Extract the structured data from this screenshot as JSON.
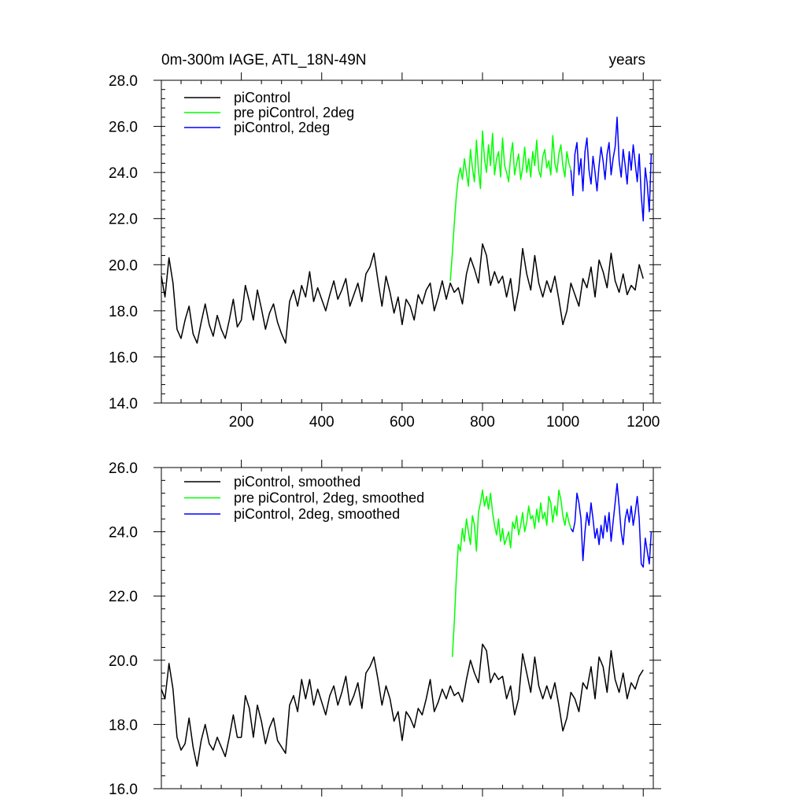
{
  "chart_data": [
    {
      "type": "line",
      "title": "0m-300m IAGE, ATL_18N-49N",
      "title_right": "years",
      "xlim": [
        1,
        1225
      ],
      "ylim": [
        14,
        28
      ],
      "xticks": [
        200,
        400,
        600,
        800,
        1000,
        1200
      ],
      "xtick_labels": [
        "200",
        "400",
        "600",
        "800",
        "1000",
        "1200"
      ],
      "yticks": [
        14,
        16,
        18,
        20,
        22,
        24,
        26,
        28
      ],
      "ytick_labels": [
        "14.0",
        "16.0",
        "18.0",
        "20.0",
        "22.0",
        "24.0",
        "26.0",
        "28.0"
      ],
      "grid": false,
      "legend_position": "top-left",
      "series": [
        {
          "name": "piControl",
          "color": "#000000",
          "x": [
            1,
            10,
            20,
            30,
            40,
            50,
            60,
            70,
            80,
            90,
            100,
            110,
            120,
            130,
            140,
            150,
            160,
            170,
            180,
            190,
            200,
            210,
            220,
            230,
            240,
            250,
            260,
            270,
            280,
            290,
            300,
            310,
            320,
            330,
            340,
            350,
            360,
            370,
            380,
            390,
            400,
            410,
            420,
            430,
            440,
            450,
            460,
            470,
            480,
            490,
            500,
            510,
            520,
            530,
            540,
            550,
            560,
            570,
            580,
            590,
            600,
            610,
            620,
            630,
            640,
            650,
            660,
            670,
            680,
            690,
            700,
            710,
            720,
            730,
            740,
            750,
            760,
            770,
            780,
            790,
            800,
            810,
            820,
            830,
            840,
            850,
            860,
            870,
            880,
            890,
            900,
            910,
            920,
            930,
            940,
            950,
            960,
            970,
            980,
            990,
            1000,
            1010,
            1020,
            1030,
            1040,
            1050,
            1060,
            1070,
            1080,
            1090,
            1100,
            1110,
            1120,
            1130,
            1140,
            1150,
            1160,
            1170,
            1180,
            1190,
            1200
          ],
          "y": [
            19.5,
            18.6,
            20.3,
            19.2,
            17.2,
            16.8,
            17.6,
            18.2,
            17.0,
            16.6,
            17.5,
            18.3,
            17.4,
            16.9,
            17.8,
            17.2,
            16.8,
            17.6,
            18.5,
            17.3,
            17.6,
            19.1,
            18.4,
            17.6,
            18.9,
            18.1,
            17.2,
            17.9,
            18.3,
            17.5,
            17.0,
            16.6,
            18.4,
            18.9,
            18.2,
            19.1,
            18.6,
            19.7,
            18.4,
            19.0,
            18.5,
            18.0,
            18.7,
            19.3,
            18.5,
            18.9,
            19.4,
            18.2,
            18.7,
            19.2,
            18.4,
            19.6,
            19.9,
            20.5,
            19.3,
            18.2,
            19.5,
            18.8,
            17.9,
            18.6,
            17.4,
            18.5,
            18.2,
            17.6,
            18.7,
            18.3,
            18.9,
            19.2,
            18.0,
            18.6,
            19.3,
            18.5,
            19.2,
            18.8,
            19.0,
            18.3,
            19.6,
            20.3,
            19.8,
            19.2,
            20.9,
            20.4,
            19.1,
            19.7,
            19.2,
            19.5,
            18.6,
            19.4,
            18.0,
            18.9,
            20.7,
            19.6,
            18.9,
            20.4,
            19.2,
            18.6,
            19.3,
            18.8,
            19.5,
            18.5,
            17.4,
            18.0,
            19.2,
            18.7,
            18.2,
            19.4,
            19.0,
            19.9,
            18.6,
            20.2,
            19.7,
            19.0,
            20.5,
            19.3,
            18.8,
            19.6,
            18.7,
            19.1,
            18.9,
            20.0,
            19.4
          ]
        },
        {
          "name": "pre piControl, 2deg",
          "color": "#00ff00",
          "x": [
            720,
            725,
            730,
            735,
            740,
            745,
            750,
            755,
            760,
            765,
            770,
            775,
            780,
            785,
            790,
            795,
            800,
            805,
            810,
            815,
            820,
            825,
            830,
            835,
            840,
            845,
            850,
            855,
            860,
            865,
            870,
            875,
            880,
            885,
            890,
            895,
            900,
            905,
            910,
            915,
            920,
            925,
            930,
            935,
            940,
            945,
            950,
            955,
            960,
            965,
            970,
            975,
            980,
            985,
            990,
            995,
            1000,
            1005,
            1010,
            1015,
            1020
          ],
          "y": [
            19.3,
            20.5,
            21.8,
            23.0,
            23.8,
            24.2,
            23.7,
            24.6,
            24.0,
            23.4,
            25.0,
            24.2,
            23.6,
            25.4,
            24.1,
            23.3,
            25.8,
            24.6,
            24.0,
            25.2,
            24.3,
            25.7,
            23.9,
            24.6,
            24.9,
            23.8,
            25.5,
            24.3,
            24.0,
            23.6,
            24.7,
            25.3,
            23.9,
            24.4,
            24.8,
            23.7,
            24.2,
            25.1,
            24.0,
            24.6,
            23.8,
            24.9,
            24.3,
            25.4,
            24.1,
            23.8,
            24.7,
            25.0,
            24.2,
            24.5,
            23.9,
            25.6,
            24.4,
            24.0,
            24.8,
            25.2,
            24.3,
            23.8,
            24.9,
            24.4,
            24.1
          ]
        },
        {
          "name": "piControl, 2deg",
          "color": "#0000ff",
          "x": [
            1020,
            1025,
            1030,
            1035,
            1040,
            1045,
            1050,
            1055,
            1060,
            1065,
            1070,
            1075,
            1080,
            1085,
            1090,
            1095,
            1100,
            1105,
            1110,
            1115,
            1120,
            1125,
            1130,
            1135,
            1140,
            1145,
            1150,
            1155,
            1160,
            1165,
            1170,
            1175,
            1180,
            1185,
            1190,
            1195,
            1200,
            1205,
            1210,
            1215,
            1220
          ],
          "y": [
            24.1,
            23.0,
            24.8,
            25.3,
            23.9,
            24.6,
            23.2,
            24.9,
            25.5,
            24.1,
            23.5,
            24.7,
            24.0,
            23.2,
            24.3,
            25.1,
            24.5,
            23.7,
            24.8,
            25.3,
            23.9,
            24.6,
            25.1,
            26.4,
            24.5,
            23.8,
            25.0,
            24.3,
            23.5,
            24.9,
            24.1,
            25.2,
            24.4,
            23.6,
            24.8,
            23.0,
            21.9,
            24.2,
            23.5,
            22.3,
            24.8
          ]
        }
      ]
    },
    {
      "type": "line",
      "title": "",
      "xlim": [
        1,
        1225
      ],
      "ylim": [
        16,
        26
      ],
      "xticks": [
        200,
        400,
        600,
        800,
        1000,
        1200
      ],
      "yticks": [
        16,
        18,
        20,
        22,
        24,
        26
      ],
      "ytick_labels": [
        "16.0",
        "18.0",
        "20.0",
        "22.0",
        "24.0",
        "26.0"
      ],
      "grid": false,
      "legend_position": "top-left",
      "series": [
        {
          "name": "piControl, smoothed",
          "color": "#000000",
          "x": [
            1,
            10,
            20,
            30,
            40,
            50,
            60,
            70,
            80,
            90,
            100,
            110,
            120,
            130,
            140,
            150,
            160,
            170,
            180,
            190,
            200,
            210,
            220,
            230,
            240,
            250,
            260,
            270,
            280,
            290,
            300,
            310,
            320,
            330,
            340,
            350,
            360,
            370,
            380,
            390,
            400,
            410,
            420,
            430,
            440,
            450,
            460,
            470,
            480,
            490,
            500,
            510,
            520,
            530,
            540,
            550,
            560,
            570,
            580,
            590,
            600,
            610,
            620,
            630,
            640,
            650,
            660,
            670,
            680,
            690,
            700,
            710,
            720,
            730,
            740,
            750,
            760,
            770,
            780,
            790,
            800,
            810,
            820,
            830,
            840,
            850,
            860,
            870,
            880,
            890,
            900,
            910,
            920,
            930,
            940,
            950,
            960,
            970,
            980,
            990,
            1000,
            1010,
            1020,
            1030,
            1040,
            1050,
            1060,
            1070,
            1080,
            1090,
            1100,
            1110,
            1120,
            1130,
            1140,
            1150,
            1160,
            1170,
            1180,
            1190,
            1200
          ],
          "y": [
            19.1,
            18.8,
            19.9,
            19.1,
            17.6,
            17.2,
            17.4,
            18.2,
            17.3,
            16.7,
            17.5,
            18.0,
            17.4,
            17.2,
            17.6,
            17.3,
            17.0,
            17.6,
            18.3,
            17.6,
            17.6,
            18.9,
            18.5,
            17.6,
            18.6,
            18.1,
            17.4,
            17.9,
            18.2,
            17.5,
            17.3,
            17.1,
            18.6,
            18.9,
            18.4,
            19.4,
            18.8,
            19.4,
            18.6,
            19.1,
            18.7,
            18.3,
            18.9,
            19.2,
            18.6,
            19.0,
            19.5,
            18.6,
            18.9,
            19.3,
            18.5,
            19.6,
            19.8,
            20.1,
            19.4,
            18.6,
            19.2,
            18.8,
            18.1,
            18.4,
            17.5,
            18.4,
            18.2,
            17.9,
            18.5,
            18.3,
            18.8,
            19.4,
            18.4,
            18.7,
            19.1,
            18.8,
            19.2,
            18.9,
            19.0,
            18.7,
            19.4,
            20.0,
            19.6,
            19.3,
            20.5,
            20.3,
            19.3,
            19.6,
            19.4,
            19.5,
            18.8,
            19.2,
            18.3,
            18.8,
            20.2,
            19.6,
            19.0,
            20.1,
            19.2,
            18.8,
            19.2,
            18.8,
            19.3,
            18.6,
            17.8,
            18.2,
            19.0,
            18.8,
            18.4,
            19.3,
            19.1,
            19.8,
            18.8,
            20.1,
            19.8,
            19.0,
            20.3,
            19.4,
            19.0,
            19.6,
            18.8,
            19.3,
            19.1,
            19.5,
            19.7
          ]
        },
        {
          "name": "pre piControl, 2deg, smoothed",
          "color": "#00ff00",
          "x": [
            725,
            730,
            735,
            740,
            745,
            750,
            755,
            760,
            765,
            770,
            775,
            780,
            785,
            790,
            795,
            800,
            805,
            810,
            815,
            820,
            825,
            830,
            835,
            840,
            845,
            850,
            855,
            860,
            865,
            870,
            875,
            880,
            885,
            890,
            895,
            900,
            905,
            910,
            915,
            920,
            925,
            930,
            935,
            940,
            945,
            950,
            955,
            960,
            965,
            970,
            975,
            980,
            985,
            990,
            995,
            1000,
            1005,
            1010,
            1015,
            1020
          ],
          "y": [
            20.1,
            21.2,
            22.6,
            23.6,
            23.4,
            24.1,
            23.7,
            24.4,
            24.0,
            23.6,
            24.5,
            24.2,
            23.4,
            24.6,
            24.9,
            25.3,
            24.8,
            25.1,
            24.7,
            25.2,
            24.6,
            24.2,
            23.9,
            24.4,
            23.7,
            24.1,
            23.6,
            23.8,
            24.0,
            23.5,
            24.3,
            24.1,
            24.5,
            23.9,
            24.2,
            24.6,
            24.0,
            24.3,
            24.8,
            24.4,
            24.5,
            24.1,
            24.7,
            24.3,
            24.9,
            24.4,
            24.6,
            24.2,
            25.1,
            24.9,
            24.3,
            24.8,
            24.5,
            25.3,
            25.0,
            24.5,
            24.2,
            24.6,
            24.3,
            24.1
          ]
        },
        {
          "name": "piControl, 2deg, smoothed",
          "color": "#0000ff",
          "x": [
            1020,
            1025,
            1030,
            1035,
            1040,
            1045,
            1050,
            1055,
            1060,
            1065,
            1070,
            1075,
            1080,
            1085,
            1090,
            1095,
            1100,
            1105,
            1110,
            1115,
            1120,
            1125,
            1130,
            1135,
            1140,
            1145,
            1150,
            1155,
            1160,
            1165,
            1170,
            1175,
            1180,
            1185,
            1190,
            1195,
            1200,
            1205,
            1210,
            1215,
            1220
          ],
          "y": [
            24.1,
            24.0,
            24.3,
            25.2,
            24.9,
            24.4,
            23.1,
            24.0,
            24.6,
            24.2,
            24.9,
            24.4,
            23.8,
            24.1,
            23.6,
            24.2,
            23.8,
            24.5,
            24.0,
            24.6,
            23.7,
            24.3,
            24.9,
            25.5,
            24.8,
            24.0,
            23.6,
            24.4,
            24.7,
            24.3,
            24.8,
            24.2,
            24.6,
            25.1,
            24.4,
            23.0,
            22.9,
            23.8,
            23.4,
            23.0,
            24.0
          ]
        }
      ]
    }
  ]
}
